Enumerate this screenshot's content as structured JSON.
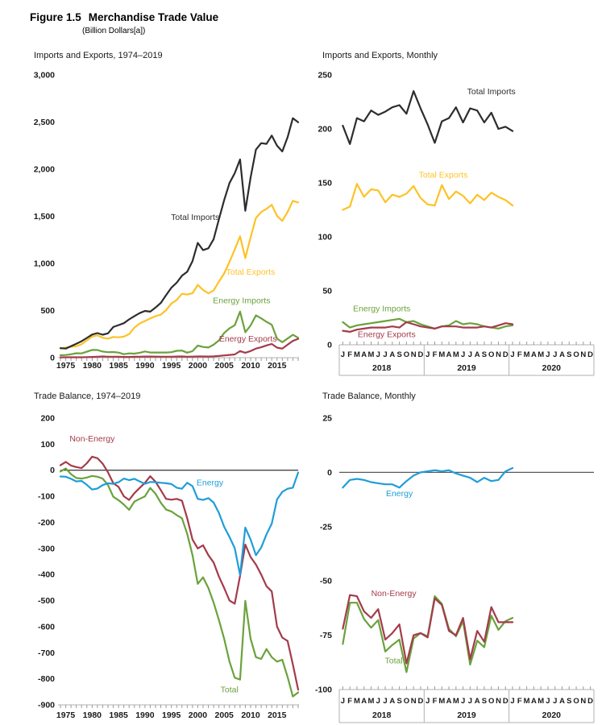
{
  "header": {
    "figure_label": "Figure 1.5",
    "title": "Merchandise Trade Value",
    "subtitle": "(Billion Dollars[a])"
  },
  "colors": {
    "total_imports": "#2d2d2d",
    "total_exports": "#fdc226",
    "energy_imports": "#6aa23c",
    "energy_exports": "#a43b4b",
    "non_energy": "#a43b4b",
    "energy_balance": "#1f9dd9",
    "total_balance": "#6aa23c",
    "axis_line": "#b0b0b0",
    "tick": "#9a9a9a",
    "axis_text": "#1a1a1a",
    "zero_line_annual": "#000000",
    "zero_line_monthly": "#595959"
  },
  "chart_data": [
    {
      "id": "imports-exports-annual",
      "type": "line",
      "title": "Imports and Exports, 1974–2019",
      "x": {
        "kind": "years",
        "start": 1974,
        "end": 2019,
        "tick_labels": [
          "1975",
          "1980",
          "1985",
          "1990",
          "1995",
          "2000",
          "2005",
          "2010",
          "2015"
        ]
      },
      "ylim": [
        0,
        3000
      ],
      "yticks": [
        {
          "value": 0,
          "label": "0"
        },
        {
          "value": 500,
          "label": "500"
        },
        {
          "value": 1000,
          "label": "1,000"
        },
        {
          "value": 1500,
          "label": "1,500"
        },
        {
          "value": 2000,
          "label": "2,000"
        },
        {
          "value": 2500,
          "label": "2,500"
        },
        {
          "value": 3000,
          "label": "3,000"
        }
      ],
      "grid": false,
      "legend": "inline-labels",
      "series": [
        {
          "name": "Total Exports",
          "color": "total_exports",
          "label_at": {
            "x": 2010,
            "y": 880
          },
          "values": [
            98,
            107,
            115,
            121,
            142,
            184,
            224,
            237,
            211,
            202,
            220,
            216,
            223,
            250,
            320,
            362,
            389,
            416,
            440,
            457,
            503,
            575,
            612,
            678,
            670,
            684,
            772,
            719,
            682,
            713,
            808,
            893,
            1016,
            1148,
            1287,
            1056,
            1278,
            1482,
            1545,
            1579,
            1621,
            1503,
            1451,
            1546,
            1664,
            1646
          ]
        },
        {
          "name": "Total Imports",
          "color": "total_imports",
          "label_at": {
            "x": 1999.5,
            "y": 1460
          },
          "values": [
            101,
            97,
            122,
            148,
            174,
            209,
            245,
            261,
            244,
            258,
            326,
            345,
            366,
            406,
            441,
            473,
            496,
            488,
            532,
            581,
            663,
            743,
            795,
            869,
            911,
            1025,
            1218,
            1141,
            1161,
            1257,
            1470,
            1673,
            1853,
            1957,
            2103,
            1559,
            1913,
            2208,
            2276,
            2268,
            2356,
            2249,
            2188,
            2339,
            2541,
            2498
          ]
        },
        {
          "name": "Energy Imports",
          "color": "energy_imports",
          "label_at": {
            "x": 2008.3,
            "y": 575
          },
          "values": [
            26,
            28,
            36,
            47,
            45,
            63,
            82,
            81,
            65,
            58,
            60,
            54,
            37,
            45,
            43,
            52,
            66,
            55,
            55,
            55,
            55,
            58,
            73,
            75,
            53,
            69,
            128,
            114,
            108,
            138,
            184,
            262,
            311,
            344,
            489,
            270,
            342,
            449,
            417,
            380,
            350,
            202,
            164,
            203,
            243,
            211
          ]
        },
        {
          "name": "Energy Exports",
          "color": "energy_exports",
          "label_at": {
            "x": 2009.5,
            "y": 172
          },
          "values": [
            3,
            4,
            4,
            4,
            4,
            6,
            8,
            10,
            13,
            10,
            10,
            10,
            8,
            8,
            9,
            10,
            12,
            12,
            11,
            10,
            10,
            10,
            12,
            13,
            10,
            11,
            13,
            13,
            12,
            14,
            18,
            24,
            29,
            34,
            70,
            52,
            70,
            97,
            110,
            130,
            145,
            107,
            96,
            138,
            178,
            200
          ]
        }
      ]
    },
    {
      "id": "imports-exports-monthly",
      "type": "line",
      "title": "Imports and Exports, Monthly",
      "x": {
        "kind": "months",
        "sections": [
          "2018",
          "2019",
          "2020"
        ],
        "letters": [
          "J",
          "F",
          "M",
          "A",
          "M",
          "J",
          "J",
          "A",
          "S",
          "O",
          "N",
          "D"
        ]
      },
      "ylim": [
        0,
        250
      ],
      "yticks": [
        {
          "value": 0,
          "label": "0"
        },
        {
          "value": 50,
          "label": "50"
        },
        {
          "value": 100,
          "label": "100"
        },
        {
          "value": 150,
          "label": "150"
        },
        {
          "value": 200,
          "label": "200"
        },
        {
          "value": 250,
          "label": "250"
        }
      ],
      "grid": false,
      "legend": "inline-labels",
      "series": [
        {
          "name": "Total Imports",
          "color": "total_imports",
          "label_at": {
            "x": 21,
            "y": 232
          },
          "values": [
            203,
            186,
            210,
            207,
            217,
            213,
            216,
            220,
            222,
            214,
            235,
            219,
            204,
            187,
            207,
            210,
            220,
            206,
            219,
            217,
            206,
            215,
            200,
            202,
            198
          ]
        },
        {
          "name": "Total Exports",
          "color": "total_exports",
          "label_at": {
            "x": 14.2,
            "y": 155
          },
          "values": [
            125,
            128,
            149,
            137,
            144,
            143,
            132,
            139,
            137,
            140,
            147,
            136,
            130,
            129,
            148,
            135,
            142,
            138,
            131,
            139,
            134,
            141,
            137,
            134,
            129
          ]
        },
        {
          "name": "Energy Imports",
          "color": "energy_imports",
          "label_at": {
            "x": 5.5,
            "y": 31
          },
          "values": [
            21,
            16,
            18,
            19,
            20,
            21,
            22,
            23,
            24,
            21,
            22,
            19,
            17,
            15,
            17,
            18,
            22,
            19,
            20,
            19,
            17,
            16,
            15,
            17,
            18
          ]
        },
        {
          "name": "Energy Exports",
          "color": "energy_exports",
          "label_at": {
            "x": 6.2,
            "y": 7
          },
          "values": [
            13,
            12,
            14,
            15,
            16,
            16,
            16,
            17,
            16,
            21,
            19,
            17,
            16,
            15,
            17,
            17,
            17,
            16,
            16,
            16,
            17,
            16,
            18,
            20,
            19
          ]
        }
      ]
    },
    {
      "id": "trade-balance-annual",
      "type": "line",
      "title": "Trade Balance, 1974–2019",
      "x": {
        "kind": "years",
        "start": 1974,
        "end": 2019,
        "tick_labels": [
          "1975",
          "1980",
          "1985",
          "1990",
          "1995",
          "2000",
          "2005",
          "2010",
          "2015"
        ]
      },
      "ylim": [
        -900,
        200
      ],
      "zero_line": true,
      "yticks": [
        {
          "value": 200,
          "label": "200"
        },
        {
          "value": 100,
          "label": "100"
        },
        {
          "value": 0,
          "label": "0"
        },
        {
          "value": -100,
          "label": "-100"
        },
        {
          "value": -200,
          "label": "-200"
        },
        {
          "value": -300,
          "label": "-300"
        },
        {
          "value": -400,
          "label": "-400"
        },
        {
          "value": -500,
          "label": "-500"
        },
        {
          "value": -600,
          "label": "-600"
        },
        {
          "value": -700,
          "label": "-700"
        },
        {
          "value": -800,
          "label": "-800"
        },
        {
          "value": -900,
          "label": "-900"
        }
      ],
      "grid": false,
      "legend": "inline-labels",
      "series": [
        {
          "name": "Total",
          "color": "total_balance",
          "label_at": {
            "x": 2006,
            "y": -852
          },
          "values": [
            -5,
            7,
            -15,
            -30,
            -32,
            -28,
            -22,
            -25,
            -32,
            -57,
            -102,
            -115,
            -132,
            -152,
            -120,
            -110,
            -100,
            -68,
            -90,
            -125,
            -151,
            -158,
            -172,
            -184,
            -244,
            -326,
            -436,
            -411,
            -452,
            -508,
            -575,
            -647,
            -734,
            -796,
            -803,
            -501,
            -647,
            -717,
            -724,
            -686,
            -717,
            -734,
            -727,
            -793,
            -868,
            -852
          ]
        },
        {
          "name": "Non-Energy",
          "color": "non_energy",
          "label_at": {
            "x": 1980,
            "y": 110
          },
          "values": [
            19,
            32,
            18,
            12,
            8,
            27,
            52,
            46,
            25,
            -8,
            -50,
            -64,
            -100,
            -114,
            -88,
            -68,
            -48,
            -23,
            -44,
            -77,
            -110,
            -113,
            -110,
            -117,
            -184,
            -266,
            -300,
            -288,
            -326,
            -354,
            -408,
            -452,
            -500,
            -512,
            -405,
            -285,
            -333,
            -362,
            -400,
            -445,
            -465,
            -600,
            -642,
            -655,
            -745,
            -842
          ]
        },
        {
          "name": "Energy",
          "color": "energy_balance",
          "label_at": {
            "x": 2002.3,
            "y": -58
          },
          "values": [
            -24,
            -25,
            -33,
            -43,
            -41,
            -56,
            -74,
            -70,
            -57,
            -50,
            -52,
            -46,
            -32,
            -38,
            -33,
            -43,
            -52,
            -45,
            -46,
            -48,
            -50,
            -53,
            -67,
            -71,
            -48,
            -61,
            -110,
            -114,
            -107,
            -124,
            -164,
            -217,
            -256,
            -299,
            -402,
            -220,
            -266,
            -326,
            -297,
            -246,
            -205,
            -112,
            -83,
            -71,
            -67,
            -9
          ]
        }
      ]
    },
    {
      "id": "trade-balance-monthly",
      "type": "line",
      "title": "Trade Balance, Monthly",
      "x": {
        "kind": "months",
        "sections": [
          "2018",
          "2019",
          "2020"
        ],
        "letters": [
          "J",
          "F",
          "M",
          "A",
          "M",
          "J",
          "J",
          "A",
          "S",
          "O",
          "N",
          "D"
        ]
      },
      "ylim": [
        -100,
        25
      ],
      "zero_line": true,
      "yticks": [
        {
          "value": 25,
          "label": "25"
        },
        {
          "value": 0,
          "label": "0"
        },
        {
          "value": -25,
          "label": "-25"
        },
        {
          "value": -50,
          "label": "-50"
        },
        {
          "value": -75,
          "label": "-75"
        },
        {
          "value": -100,
          "label": "-100"
        }
      ],
      "grid": false,
      "legend": "inline-labels",
      "series": [
        {
          "name": "Total",
          "color": "total_balance",
          "label_at": {
            "x": 7.2,
            "y": -88
          },
          "values": [
            -79,
            -60,
            -60,
            -67.5,
            -71.5,
            -68,
            -82.5,
            -79.5,
            -77,
            -92,
            -76.5,
            -74,
            -75.5,
            -57,
            -60.5,
            -72,
            -75.5,
            -68.5,
            -88.5,
            -77.5,
            -80.5,
            -66,
            -72.5,
            -68.5,
            -67
          ]
        },
        {
          "name": "Non-Energy",
          "color": "non_energy",
          "label_at": {
            "x": 7.2,
            "y": -57
          },
          "values": [
            -72,
            -56.5,
            -57,
            -64,
            -67,
            -63,
            -77,
            -74,
            -70,
            -88,
            -75,
            -74,
            -76,
            -58,
            -61,
            -73,
            -75,
            -67,
            -86,
            -73,
            -78,
            -62,
            -69,
            -69,
            -69
          ]
        },
        {
          "name": "Energy",
          "color": "energy_balance",
          "label_at": {
            "x": 8,
            "y": -11
          },
          "values": [
            -7,
            -3.5,
            -3,
            -3.5,
            -4.5,
            -5,
            -5.5,
            -5.5,
            -7,
            -4,
            -1.5,
            0,
            0.5,
            1,
            0.5,
            1,
            -0.5,
            -1.5,
            -2.5,
            -4.5,
            -2.5,
            -4,
            -3.5,
            0.5,
            2
          ]
        }
      ]
    }
  ]
}
